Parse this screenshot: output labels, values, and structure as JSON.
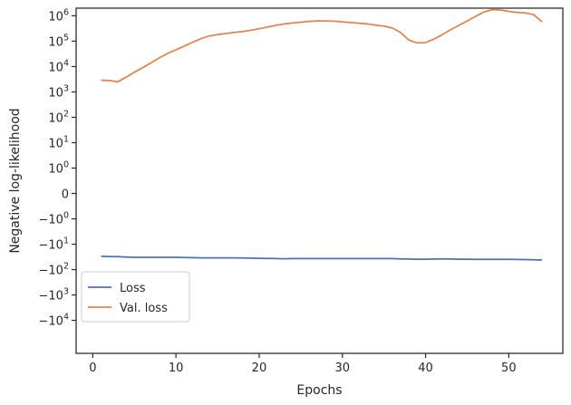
{
  "chart_data": {
    "type": "line",
    "xlabel": "Epochs",
    "ylabel": "Negative log-likelihood",
    "yscale": "symlog",
    "xlim": [
      -2,
      56.5
    ],
    "ylim": [
      -200000,
      2000000
    ],
    "x_ticks": [
      0,
      10,
      20,
      30,
      40,
      50
    ],
    "y_ticks": [
      {
        "value": 1000000,
        "base": "10",
        "exp": "6"
      },
      {
        "value": 100000,
        "base": "10",
        "exp": "5"
      },
      {
        "value": 10000,
        "base": "10",
        "exp": "4"
      },
      {
        "value": 1000,
        "base": "10",
        "exp": "3"
      },
      {
        "value": 100,
        "base": "10",
        "exp": "2"
      },
      {
        "value": 10,
        "base": "10",
        "exp": "1"
      },
      {
        "value": 1,
        "base": "10",
        "exp": "0"
      },
      {
        "value": 0,
        "text": "0"
      },
      {
        "value": -1,
        "base": "−10",
        "exp": "0"
      },
      {
        "value": -10,
        "base": "−10",
        "exp": "1"
      },
      {
        "value": -100,
        "base": "−10",
        "exp": "2"
      },
      {
        "value": -1000,
        "base": "−10",
        "exp": "3"
      },
      {
        "value": -10000,
        "base": "−10",
        "exp": "4"
      }
    ],
    "legend_position": "lower-left",
    "grid": false,
    "series": [
      {
        "name": "Loss",
        "color": "#4c72b0",
        "x": [
          1,
          2,
          3,
          4,
          5,
          6,
          7,
          8,
          9,
          10,
          11,
          12,
          13,
          14,
          15,
          16,
          17,
          18,
          19,
          20,
          21,
          22,
          23,
          24,
          25,
          26,
          27,
          28,
          29,
          30,
          31,
          32,
          33,
          34,
          35,
          36,
          37,
          38,
          39,
          40,
          41,
          42,
          43,
          44,
          45,
          46,
          47,
          48,
          49,
          50,
          51,
          52,
          53,
          54
        ],
        "y": [
          -30,
          -30.5,
          -31,
          -32,
          -33,
          -33,
          -33,
          -33,
          -33,
          -33,
          -33.5,
          -34,
          -34.5,
          -34.5,
          -34.5,
          -34.5,
          -34.5,
          -35,
          -35.5,
          -36,
          -36.5,
          -37,
          -37.5,
          -37,
          -37,
          -37,
          -37,
          -37,
          -37,
          -37,
          -37,
          -37,
          -37,
          -37,
          -37,
          -37,
          -38,
          -38.5,
          -39,
          -39,
          -38.5,
          -38,
          -38.5,
          -39,
          -39,
          -39.5,
          -39.5,
          -39.5,
          -39.5,
          -39.5,
          -40,
          -40.5,
          -41,
          -42
        ]
      },
      {
        "name": "Val. loss",
        "color": "#dd8452",
        "x": [
          1,
          2,
          3,
          4,
          5,
          6,
          7,
          8,
          9,
          10,
          11,
          12,
          13,
          14,
          15,
          16,
          17,
          18,
          19,
          20,
          21,
          22,
          23,
          24,
          25,
          26,
          27,
          28,
          29,
          30,
          31,
          32,
          33,
          34,
          35,
          36,
          37,
          38,
          39,
          40,
          41,
          42,
          43,
          44,
          45,
          46,
          47,
          48,
          49,
          50,
          51,
          52,
          53,
          54
        ],
        "y": [
          2900,
          2800,
          2500,
          3800,
          6000,
          9000,
          14000,
          22000,
          33000,
          46000,
          64000,
          90000,
          125000,
          160000,
          180000,
          200000,
          220000,
          240000,
          270000,
          310000,
          360000,
          420000,
          480000,
          520000,
          560000,
          600000,
          630000,
          630000,
          610000,
          580000,
          540000,
          510000,
          480000,
          430000,
          390000,
          330000,
          220000,
          110000,
          85000,
          88000,
          120000,
          180000,
          280000,
          420000,
          620000,
          950000,
          1400000,
          1750000,
          1700000,
          1500000,
          1350000,
          1300000,
          1100000,
          580000
        ]
      }
    ]
  }
}
